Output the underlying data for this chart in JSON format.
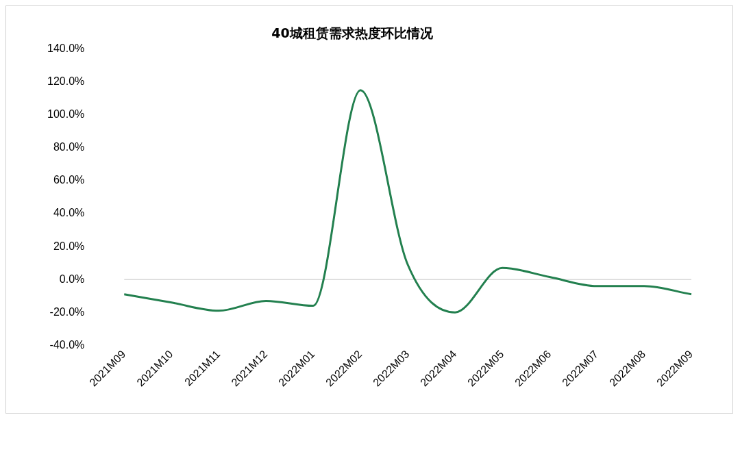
{
  "chart_data": {
    "type": "line",
    "title": "40城租赁需求热度环比情况",
    "categories": [
      "2021M09",
      "2021M10",
      "2021M11",
      "2021M12",
      "2022M01",
      "2022M02",
      "2022M03",
      "2022M04",
      "2022M05",
      "2022M06",
      "2022M07",
      "2022M08",
      "2022M09"
    ],
    "series": [
      {
        "color": "#23804f",
        "values": [
          -9,
          -14,
          -19,
          -13,
          -16,
          115,
          9,
          -20,
          7,
          1.5,
          -4,
          -4,
          -9
        ]
      }
    ],
    "ylim": [
      -40,
      140
    ],
    "yticks": [
      {
        "value": -40,
        "label": "-40.0%"
      },
      {
        "value": -20,
        "label": "-20.0%"
      },
      {
        "value": 0,
        "label": "0.0%"
      },
      {
        "value": 20,
        "label": "20.0%"
      },
      {
        "value": 40,
        "label": "40.0%"
      },
      {
        "value": 60,
        "label": "60.0%"
      },
      {
        "value": 80,
        "label": "80.0%"
      },
      {
        "value": 100,
        "label": "100.0%"
      },
      {
        "value": 120,
        "label": "120.0%"
      },
      {
        "value": 140,
        "label": "140.0%"
      }
    ],
    "ref_lines": [
      {
        "axis": "y",
        "value": 0,
        "color": "#d9d9d9"
      }
    ],
    "grid": false,
    "legend": false,
    "marker": "none",
    "line_style": "solid"
  }
}
